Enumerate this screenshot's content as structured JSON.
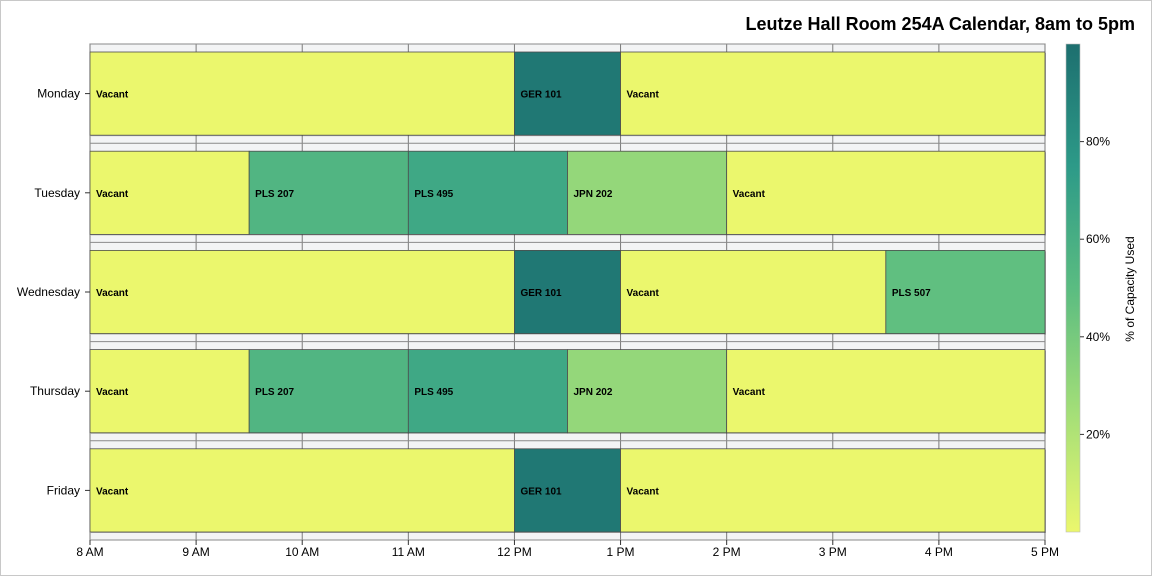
{
  "chart_data": {
    "type": "bar",
    "title": "Leutze Hall Room 254A Calendar, 8am to 5pm",
    "orientation": "horizontal-timeline",
    "categories": [
      "Monday",
      "Tuesday",
      "Wednesday",
      "Thursday",
      "Friday"
    ],
    "x_ticks": [
      "8 AM",
      "9 AM",
      "10 AM",
      "11 AM",
      "12 PM",
      "1 PM",
      "2 PM",
      "3 PM",
      "4 PM",
      "5 PM"
    ],
    "x_range_hours": [
      8,
      17
    ],
    "days": [
      {
        "day": "Monday",
        "blocks": [
          {
            "label": "Vacant",
            "start": 8,
            "end": 12,
            "capacity_pct": 0
          },
          {
            "label": "GER 101",
            "start": 12,
            "end": 13,
            "capacity_pct": 95
          },
          {
            "label": "Vacant",
            "start": 13,
            "end": 17,
            "capacity_pct": 0
          }
        ]
      },
      {
        "day": "Tuesday",
        "blocks": [
          {
            "label": "Vacant",
            "start": 8,
            "end": 9.5,
            "capacity_pct": 0
          },
          {
            "label": "PLS 207",
            "start": 9.5,
            "end": 11,
            "capacity_pct": 55
          },
          {
            "label": "PLS 495",
            "start": 11,
            "end": 12.5,
            "capacity_pct": 65
          },
          {
            "label": "JPN 202",
            "start": 12.5,
            "end": 14,
            "capacity_pct": 30
          },
          {
            "label": "Vacant",
            "start": 14,
            "end": 17,
            "capacity_pct": 0
          }
        ]
      },
      {
        "day": "Wednesday",
        "blocks": [
          {
            "label": "Vacant",
            "start": 8,
            "end": 12,
            "capacity_pct": 0
          },
          {
            "label": "GER 101",
            "start": 12,
            "end": 13,
            "capacity_pct": 95
          },
          {
            "label": "Vacant",
            "start": 13,
            "end": 15.5,
            "capacity_pct": 0
          },
          {
            "label": "PLS 507",
            "start": 15.5,
            "end": 17,
            "capacity_pct": 48
          }
        ]
      },
      {
        "day": "Thursday",
        "blocks": [
          {
            "label": "Vacant",
            "start": 8,
            "end": 9.5,
            "capacity_pct": 0
          },
          {
            "label": "PLS 207",
            "start": 9.5,
            "end": 11,
            "capacity_pct": 55
          },
          {
            "label": "PLS 495",
            "start": 11,
            "end": 12.5,
            "capacity_pct": 65
          },
          {
            "label": "JPN 202",
            "start": 12.5,
            "end": 14,
            "capacity_pct": 30
          },
          {
            "label": "Vacant",
            "start": 14,
            "end": 17,
            "capacity_pct": 0
          }
        ]
      },
      {
        "day": "Friday",
        "blocks": [
          {
            "label": "Vacant",
            "start": 8,
            "end": 12,
            "capacity_pct": 0
          },
          {
            "label": "GER 101",
            "start": 12,
            "end": 13,
            "capacity_pct": 95
          },
          {
            "label": "Vacant",
            "start": 13,
            "end": 17,
            "capacity_pct": 0
          }
        ]
      }
    ],
    "colorbar": {
      "title": "% of Capacity Used",
      "range_pct": [
        0,
        100
      ],
      "ticks": [
        20,
        40,
        60,
        80
      ],
      "tick_labels": [
        "20%",
        "40%",
        "60%",
        "80%"
      ],
      "colors": [
        "#ebf76d",
        "#a2de78",
        "#5abc81",
        "#2d9a88",
        "#1d6f6f"
      ],
      "placement": "right"
    },
    "grid": true
  }
}
